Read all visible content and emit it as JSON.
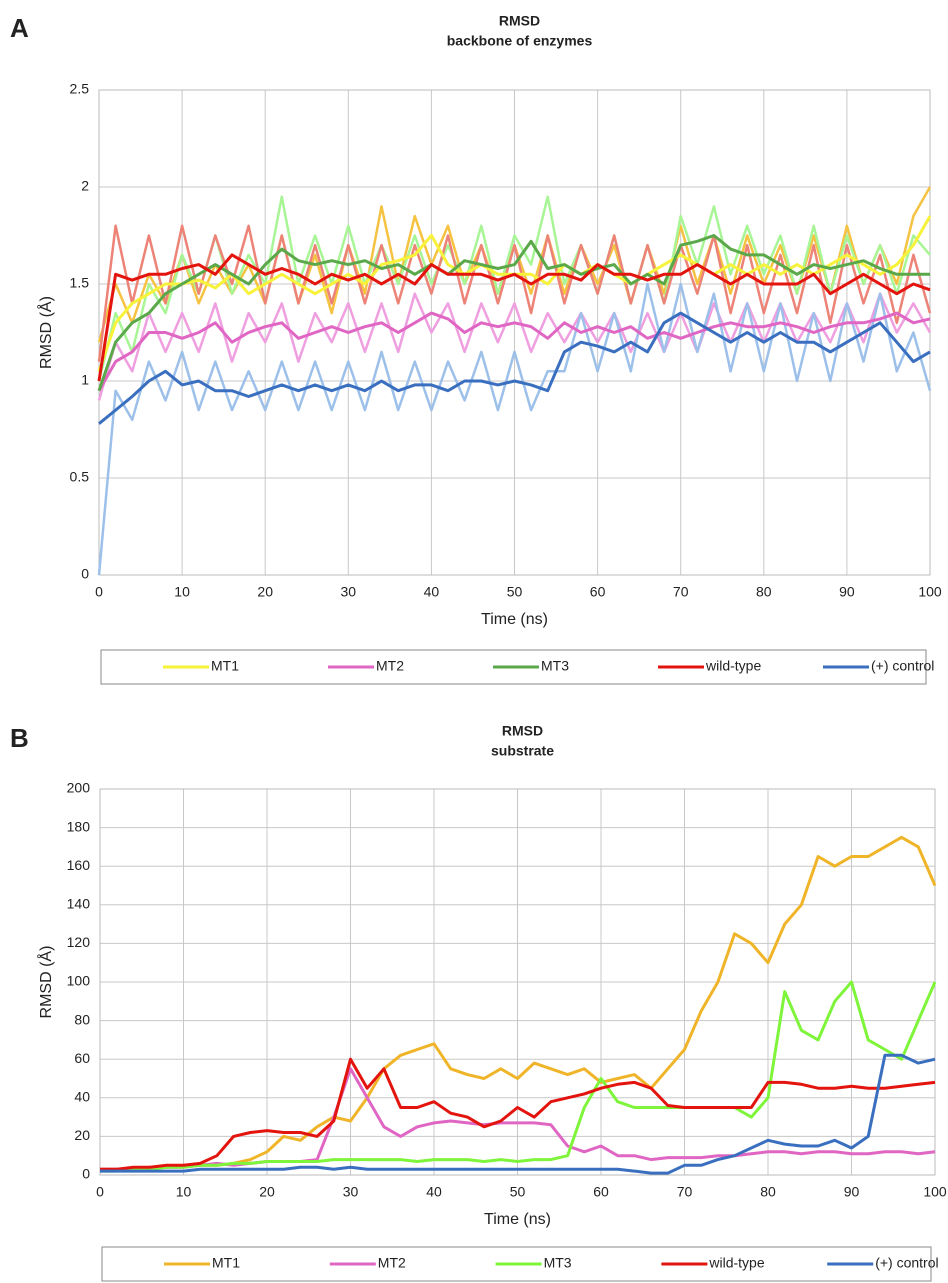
{
  "chart_data": [
    {
      "type": "line",
      "label": "A",
      "title": "RMSD",
      "subtitle": "backbone of enzymes",
      "xlabel": "Time (ns)",
      "ylabel": "RMSD (Å)",
      "xlim": [
        0,
        100
      ],
      "ylim": [
        0,
        2.5
      ],
      "xticks": [
        0,
        10,
        20,
        30,
        40,
        50,
        60,
        70,
        80,
        90,
        100
      ],
      "yticks": [
        0,
        0.5,
        1,
        1.5,
        2,
        2.5
      ],
      "grid": true,
      "legend": "bottom",
      "x": [
        0,
        2,
        4,
        6,
        8,
        10,
        12,
        14,
        16,
        18,
        20,
        22,
        24,
        26,
        28,
        30,
        32,
        34,
        36,
        38,
        40,
        42,
        44,
        46,
        48,
        50,
        52,
        54,
        56,
        58,
        60,
        62,
        64,
        66,
        68,
        70,
        72,
        74,
        76,
        78,
        80,
        82,
        84,
        86,
        88,
        90,
        92,
        94,
        96,
        98,
        100
      ],
      "series": [
        {
          "color": "#f5c242",
          "values": [
            1.2,
            1.5,
            1.3,
            1.55,
            1.4,
            1.65,
            1.4,
            1.6,
            1.45,
            1.6,
            1.4,
            1.75,
            1.4,
            1.65,
            1.35,
            1.7,
            1.45,
            1.9,
            1.5,
            1.85,
            1.6,
            1.8,
            1.5,
            1.7,
            1.45,
            1.7,
            1.45,
            1.75,
            1.45,
            1.7,
            1.5,
            1.7,
            1.4,
            1.7,
            1.45,
            1.8,
            1.5,
            1.75,
            1.45,
            1.75,
            1.5,
            1.7,
            1.45,
            1.75,
            1.45,
            1.8,
            1.5,
            1.7,
            1.5,
            1.85,
            2.0
          ]
        },
        {
          "color": "#a8f596",
          "values": [
            1.0,
            1.35,
            1.15,
            1.5,
            1.35,
            1.65,
            1.45,
            1.75,
            1.45,
            1.65,
            1.5,
            1.95,
            1.5,
            1.75,
            1.5,
            1.8,
            1.5,
            1.7,
            1.5,
            1.75,
            1.5,
            1.7,
            1.5,
            1.8,
            1.45,
            1.75,
            1.6,
            1.95,
            1.5,
            1.7,
            1.45,
            1.75,
            1.4,
            1.7,
            1.4,
            1.85,
            1.6,
            1.9,
            1.55,
            1.8,
            1.55,
            1.75,
            1.45,
            1.8,
            1.45,
            1.75,
            1.5,
            1.7,
            1.45,
            1.75,
            1.65
          ]
        },
        {
          "color": "#ed8277",
          "values": [
            1.1,
            1.8,
            1.4,
            1.75,
            1.4,
            1.8,
            1.45,
            1.75,
            1.5,
            1.8,
            1.4,
            1.75,
            1.4,
            1.7,
            1.4,
            1.7,
            1.4,
            1.7,
            1.4,
            1.7,
            1.45,
            1.75,
            1.4,
            1.7,
            1.4,
            1.7,
            1.35,
            1.75,
            1.4,
            1.7,
            1.45,
            1.75,
            1.4,
            1.7,
            1.4,
            1.7,
            1.45,
            1.75,
            1.35,
            1.7,
            1.35,
            1.65,
            1.35,
            1.7,
            1.3,
            1.7,
            1.4,
            1.65,
            1.3,
            1.65,
            1.35
          ]
        },
        {
          "color": "#ef9ee0",
          "values": [
            0.9,
            1.2,
            1.05,
            1.35,
            1.15,
            1.35,
            1.15,
            1.4,
            1.1,
            1.35,
            1.2,
            1.4,
            1.1,
            1.35,
            1.2,
            1.4,
            1.15,
            1.4,
            1.15,
            1.45,
            1.25,
            1.4,
            1.15,
            1.4,
            1.2,
            1.4,
            1.15,
            1.35,
            1.2,
            1.35,
            1.2,
            1.35,
            1.15,
            1.35,
            1.15,
            1.35,
            1.15,
            1.4,
            1.2,
            1.4,
            1.2,
            1.4,
            1.2,
            1.35,
            1.2,
            1.4,
            1.2,
            1.45,
            1.25,
            1.4,
            1.25
          ]
        },
        {
          "color": "#9cc0ea",
          "values": [
            0.0,
            0.95,
            0.8,
            1.1,
            0.9,
            1.15,
            0.85,
            1.1,
            0.85,
            1.05,
            0.85,
            1.1,
            0.85,
            1.1,
            0.85,
            1.1,
            0.85,
            1.15,
            0.85,
            1.1,
            0.85,
            1.1,
            0.9,
            1.15,
            0.85,
            1.15,
            0.85,
            1.05,
            1.05,
            1.35,
            1.05,
            1.35,
            1.05,
            1.5,
            1.15,
            1.5,
            1.15,
            1.45,
            1.05,
            1.4,
            1.05,
            1.4,
            1.0,
            1.35,
            1.0,
            1.4,
            1.1,
            1.45,
            1.05,
            1.25,
            0.95
          ]
        },
        {
          "name": "MT1",
          "color": "#f7f23a",
          "values": [
            1.05,
            1.3,
            1.4,
            1.45,
            1.5,
            1.5,
            1.52,
            1.48,
            1.55,
            1.45,
            1.5,
            1.55,
            1.5,
            1.45,
            1.5,
            1.55,
            1.5,
            1.6,
            1.62,
            1.65,
            1.75,
            1.6,
            1.55,
            1.6,
            1.55,
            1.55,
            1.55,
            1.5,
            1.6,
            1.55,
            1.6,
            1.55,
            1.5,
            1.55,
            1.6,
            1.65,
            1.6,
            1.55,
            1.6,
            1.55,
            1.6,
            1.55,
            1.6,
            1.55,
            1.6,
            1.65,
            1.6,
            1.55,
            1.6,
            1.7,
            1.85
          ]
        },
        {
          "name": "MT2",
          "color": "#e066c4",
          "values": [
            0.95,
            1.1,
            1.15,
            1.25,
            1.25,
            1.22,
            1.25,
            1.3,
            1.2,
            1.25,
            1.28,
            1.3,
            1.22,
            1.25,
            1.28,
            1.25,
            1.28,
            1.3,
            1.25,
            1.3,
            1.35,
            1.32,
            1.25,
            1.3,
            1.28,
            1.3,
            1.28,
            1.22,
            1.3,
            1.25,
            1.28,
            1.25,
            1.28,
            1.22,
            1.25,
            1.22,
            1.25,
            1.28,
            1.3,
            1.28,
            1.28,
            1.3,
            1.28,
            1.25,
            1.28,
            1.3,
            1.3,
            1.32,
            1.35,
            1.3,
            1.32
          ]
        },
        {
          "name": "MT3",
          "color": "#5aa84a",
          "values": [
            0.95,
            1.2,
            1.3,
            1.35,
            1.45,
            1.5,
            1.55,
            1.6,
            1.55,
            1.5,
            1.6,
            1.68,
            1.62,
            1.6,
            1.62,
            1.6,
            1.62,
            1.58,
            1.6,
            1.55,
            1.6,
            1.55,
            1.62,
            1.6,
            1.58,
            1.6,
            1.72,
            1.58,
            1.6,
            1.55,
            1.58,
            1.6,
            1.5,
            1.55,
            1.5,
            1.7,
            1.72,
            1.75,
            1.68,
            1.65,
            1.65,
            1.6,
            1.55,
            1.6,
            1.58,
            1.6,
            1.62,
            1.58,
            1.55,
            1.55,
            1.55
          ]
        },
        {
          "name": "wild-type",
          "color": "#e3140e",
          "values": [
            1.0,
            1.55,
            1.52,
            1.55,
            1.55,
            1.58,
            1.6,
            1.55,
            1.65,
            1.6,
            1.55,
            1.58,
            1.55,
            1.5,
            1.55,
            1.52,
            1.55,
            1.5,
            1.55,
            1.5,
            1.6,
            1.55,
            1.55,
            1.55,
            1.52,
            1.55,
            1.5,
            1.55,
            1.55,
            1.52,
            1.6,
            1.55,
            1.55,
            1.52,
            1.55,
            1.55,
            1.6,
            1.55,
            1.5,
            1.55,
            1.5,
            1.5,
            1.5,
            1.55,
            1.45,
            1.5,
            1.55,
            1.5,
            1.45,
            1.5,
            1.47
          ]
        },
        {
          "name": "(+) control",
          "color": "#3a6fbf",
          "values": [
            0.78,
            0.85,
            0.92,
            1.0,
            1.05,
            0.98,
            1.0,
            0.95,
            0.95,
            0.92,
            0.95,
            0.98,
            0.95,
            0.98,
            0.95,
            0.98,
            0.95,
            1.0,
            0.95,
            0.98,
            0.98,
            0.95,
            1.0,
            1.0,
            0.98,
            1.0,
            0.98,
            0.95,
            1.15,
            1.2,
            1.18,
            1.15,
            1.2,
            1.15,
            1.3,
            1.35,
            1.3,
            1.25,
            1.2,
            1.25,
            1.2,
            1.25,
            1.2,
            1.2,
            1.15,
            1.2,
            1.25,
            1.3,
            1.2,
            1.1,
            1.15
          ]
        }
      ]
    },
    {
      "type": "line",
      "label": "B",
      "title": "RMSD",
      "subtitle": "substrate",
      "xlabel": "Time (ns)",
      "ylabel": "RMSD (Å)",
      "xlim": [
        0,
        100
      ],
      "ylim": [
        0,
        200
      ],
      "xticks": [
        0,
        10,
        20,
        30,
        40,
        50,
        60,
        70,
        80,
        90,
        100
      ],
      "yticks": [
        0,
        20,
        40,
        60,
        80,
        100,
        120,
        140,
        160,
        180,
        200
      ],
      "grid": true,
      "legend": "bottom",
      "x": [
        0,
        2,
        4,
        6,
        8,
        10,
        12,
        14,
        16,
        18,
        20,
        22,
        24,
        26,
        28,
        30,
        32,
        34,
        36,
        38,
        40,
        42,
        44,
        46,
        48,
        50,
        52,
        54,
        56,
        58,
        60,
        62,
        64,
        66,
        68,
        70,
        72,
        74,
        76,
        78,
        80,
        82,
        84,
        86,
        88,
        90,
        92,
        94,
        96,
        98,
        100
      ],
      "series": [
        {
          "name": "MT1",
          "color": "#f0b429",
          "values": [
            3,
            3,
            3,
            4,
            4,
            5,
            5,
            5,
            6,
            8,
            12,
            20,
            18,
            25,
            30,
            28,
            40,
            55,
            62,
            65,
            68,
            55,
            52,
            50,
            55,
            50,
            58,
            55,
            52,
            55,
            48,
            50,
            52,
            45,
            55,
            65,
            85,
            100,
            125,
            120,
            110,
            130,
            140,
            165,
            160,
            165,
            165,
            170,
            175,
            170,
            150
          ]
        },
        {
          "name": "MT2",
          "color": "#e066c4",
          "values": [
            3,
            3,
            3,
            4,
            4,
            4,
            5,
            6,
            5,
            6,
            7,
            7,
            7,
            8,
            30,
            55,
            40,
            25,
            20,
            25,
            27,
            28,
            27,
            26,
            27,
            27,
            27,
            26,
            15,
            12,
            15,
            10,
            10,
            8,
            9,
            9,
            9,
            10,
            10,
            11,
            12,
            12,
            11,
            12,
            12,
            11,
            11,
            12,
            12,
            11,
            12
          ]
        },
        {
          "name": "MT3",
          "color": "#7ef53a",
          "values": [
            2,
            2,
            3,
            3,
            4,
            4,
            5,
            5,
            6,
            6,
            7,
            7,
            7,
            7,
            8,
            8,
            8,
            8,
            8,
            7,
            8,
            8,
            8,
            7,
            8,
            7,
            8,
            8,
            10,
            35,
            50,
            38,
            35,
            35,
            35,
            35,
            35,
            35,
            35,
            30,
            40,
            95,
            75,
            70,
            90,
            100,
            70,
            65,
            60,
            80,
            100
          ]
        },
        {
          "name": "wild-type",
          "color": "#e3140e",
          "values": [
            3,
            3,
            4,
            4,
            5,
            5,
            6,
            10,
            20,
            22,
            23,
            22,
            22,
            20,
            28,
            60,
            45,
            55,
            35,
            35,
            38,
            32,
            30,
            25,
            28,
            35,
            30,
            38,
            40,
            42,
            45,
            47,
            48,
            45,
            36,
            35,
            35,
            35,
            35,
            35,
            48,
            48,
            47,
            45,
            45,
            46,
            45,
            45,
            46,
            47,
            48
          ]
        },
        {
          "name": "(+) control",
          "color": "#3a6fbf",
          "values": [
            2,
            2,
            2,
            2,
            2,
            2,
            3,
            3,
            3,
            3,
            3,
            3,
            4,
            4,
            3,
            4,
            3,
            3,
            3,
            3,
            3,
            3,
            3,
            3,
            3,
            3,
            3,
            3,
            3,
            3,
            3,
            3,
            2,
            1,
            1,
            5,
            5,
            8,
            10,
            14,
            18,
            16,
            15,
            15,
            18,
            14,
            20,
            62,
            62,
            58,
            60
          ]
        }
      ]
    }
  ]
}
